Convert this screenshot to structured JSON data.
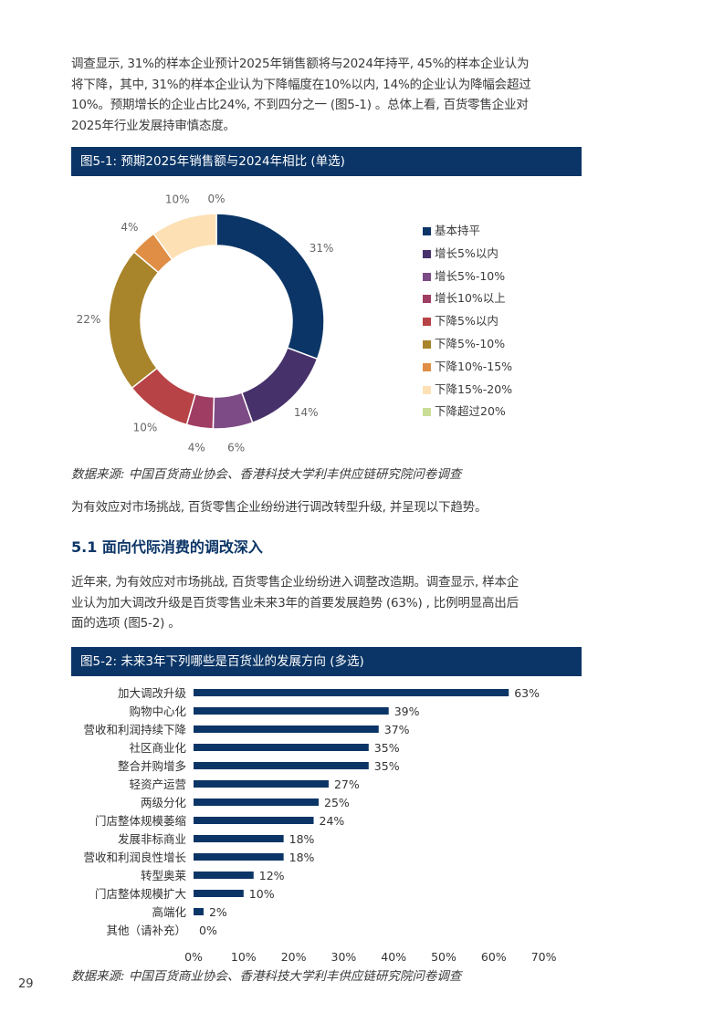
{
  "intro": {
    "lines": [
      "调查显示, 31%的样本企业预计2025年销售额将与2024年持平, 45%的样本企业认为",
      "将下降，其中, 31%的样本企业认为下降幅度在10%以内, 14%的企业认为降幅会超过",
      "10%。预期增长的企业占比24%, 不到四分之一 (图5-1) 。总体上看, 百货零售企业对",
      "2025年行业发展持审慎态度。"
    ]
  },
  "figure1": {
    "title": "图5-1: 预期2025年销售额与2024年相比 (单选)",
    "source": "数据来源: 中国百货商业协会、香港科技大学利丰供应链研究院问卷调查"
  },
  "chart_data": [
    {
      "type": "pie",
      "variant": "donut",
      "categories": [
        "基本持平",
        "增长5%以内",
        "增长5%-10%",
        "增长10%以上",
        "下降5%以内",
        "下降5%-10%",
        "下降10%-15%",
        "下降15%-20%",
        "下降超过20%"
      ],
      "values": [
        31,
        14,
        6,
        4,
        10,
        22,
        4,
        10,
        0
      ],
      "labels": [
        "31%",
        "14%",
        "6%",
        "4%",
        "10%",
        "22%",
        "4%",
        "10%",
        "0%"
      ],
      "colors": [
        "#0b3566",
        "#47316b",
        "#7d4b85",
        "#a03d62",
        "#b74346",
        "#a8842a",
        "#e08e45",
        "#fde0b4",
        "#c9dd96"
      ],
      "legend_position": "right"
    },
    {
      "type": "bar",
      "orientation": "horizontal",
      "categories": [
        "加大调改升级",
        "购物中心化",
        "营收和利润持续下降",
        "社区商业化",
        "整合并购增多",
        "轻资产运营",
        "两级分化",
        "门店整体规模萎缩",
        "发展非标商业",
        "营收和利润良性增长",
        "转型奥莱",
        "门店整体规模扩大",
        "高端化",
        "其他（请补充）"
      ],
      "values": [
        63,
        39,
        37,
        35,
        35,
        27,
        25,
        24,
        18,
        18,
        12,
        10,
        2,
        0
      ],
      "value_labels": [
        "63%",
        "39%",
        "37%",
        "35%",
        "35%",
        "27%",
        "25%",
        "24%",
        "18%",
        "18%",
        "12%",
        "10%",
        "2%",
        "0%"
      ],
      "xlim": [
        0,
        70
      ],
      "x_ticks": [
        "0%",
        "10%",
        "20%",
        "30%",
        "40%",
        "50%",
        "60%",
        "70%"
      ],
      "bar_color": "#0b3566"
    }
  ],
  "transition": "为有效应对市场挑战, 百货零售企业纷纷进行调改转型升级, 并呈现以下趋势。",
  "section": {
    "title": "5.1 面向代际消费的调改深入"
  },
  "section_para": {
    "lines": [
      "近年来, 为有效应对市场挑战, 百货零售企业纷纷进入调整改造期。调查显示, 样本企",
      "业认为加大调改升级是百货零售业未来3年的首要发展趋势 (63%) , 比例明显高出后",
      "面的选项 (图5-2) 。"
    ]
  },
  "figure2": {
    "title": "图5-2: 未来3年下列哪些是百货业的发展方向 (多选)",
    "source": "数据来源: 中国百货商业协会、香港科技大学利丰供应链研究院问卷调查"
  },
  "page_number": "29"
}
